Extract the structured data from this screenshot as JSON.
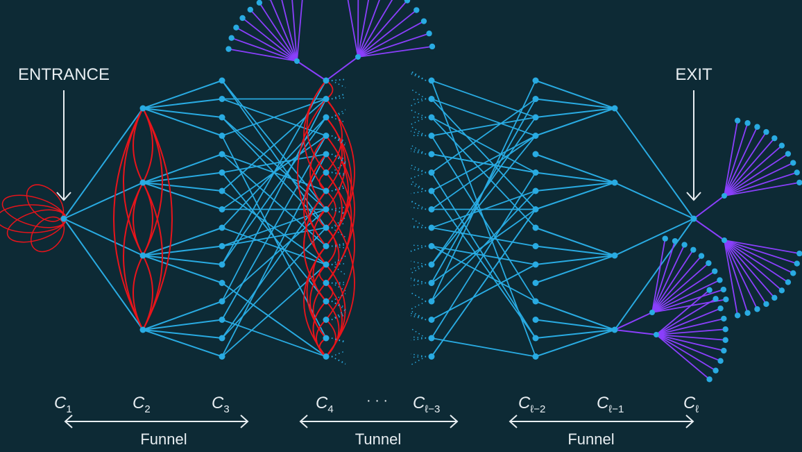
{
  "labels": {
    "entrance": "ENTRANCE",
    "exit": "EXIT",
    "dots": "· · ·"
  },
  "columns": [
    {
      "base": "C",
      "sub": "1"
    },
    {
      "base": "C",
      "sub": "2"
    },
    {
      "base": "C",
      "sub": "3"
    },
    {
      "base": "C",
      "sub": "4"
    },
    {
      "base": "C",
      "sub": "ℓ−3"
    },
    {
      "base": "C",
      "sub": "ℓ−2"
    },
    {
      "base": "C",
      "sub": "ℓ−1"
    },
    {
      "base": "C",
      "sub": "ℓ"
    }
  ],
  "groups": [
    {
      "label": "Funnel"
    },
    {
      "label": "Tunnel"
    },
    {
      "label": "Funnel"
    }
  ],
  "colors": {
    "background": "#0d2a35",
    "edge": "#29abe2",
    "node": "#29abe2",
    "loop": "#e8141b",
    "leaf": "#8a3ffc",
    "text": "#e8eef2"
  }
}
